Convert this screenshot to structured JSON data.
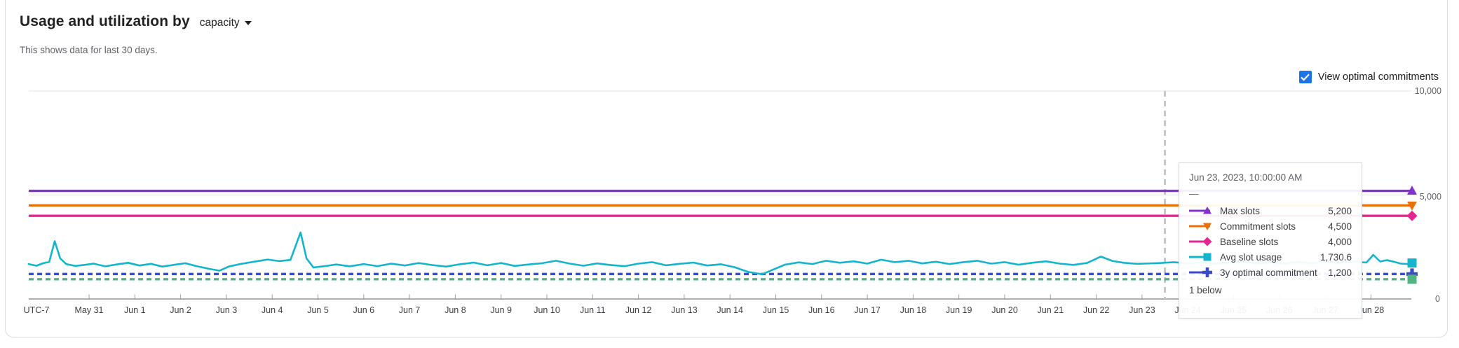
{
  "header": {
    "title": "Usage and utilization by",
    "dimension": "capacity",
    "subtitle": "This shows data for last 30 days."
  },
  "controls": {
    "view_optimal_label": "View optimal commitments",
    "checkbox_checked": true,
    "checkbox_color": "#1a73e8"
  },
  "tooltip": {
    "title": "Jun 23, 2023, 10:00:00 AM",
    "dash": "—",
    "rows": [
      {
        "label": "Max slots",
        "value": "5,200",
        "color": "#8430ce",
        "marker": "triangle-up"
      },
      {
        "label": "Commitment slots",
        "value": "4,500",
        "color": "#e8710a",
        "marker": "triangle-down"
      },
      {
        "label": "Baseline slots",
        "value": "4,000",
        "color": "#e52592",
        "marker": "diamond"
      },
      {
        "label": "Avg slot usage",
        "value": "1,730.6",
        "color": "#12b5cb",
        "marker": "square"
      },
      {
        "label": "3y optimal commitment",
        "value": "1,200",
        "color": "#3b4bc8",
        "marker": "plus"
      }
    ],
    "footer": "1 below"
  },
  "chart_data": {
    "type": "line",
    "title": "Usage and utilization by capacity",
    "x_axis": {
      "timezone_label": "UTC-7",
      "tick_labels": [
        "May 31",
        "Jun 1",
        "Jun 2",
        "Jun 3",
        "Jun 4",
        "Jun 5",
        "Jun 6",
        "Jun 7",
        "Jun 8",
        "Jun 9",
        "Jun 10",
        "Jun 11",
        "Jun 12",
        "Jun 13",
        "Jun 14",
        "Jun 15",
        "Jun 16",
        "Jun 17",
        "Jun 18",
        "Jun 19",
        "Jun 20",
        "Jun 21",
        "Jun 22",
        "Jun 23",
        "Jun 24",
        "Jun 25",
        "Jun 26",
        "Jun 27",
        "Jun 28"
      ],
      "ticks_faded_under_tooltip": [
        "Jun 24",
        "Jun 25",
        "Jun 26",
        "Jun 27"
      ]
    },
    "y_axis": {
      "range": [
        0,
        10000
      ],
      "ticks": [
        0,
        5000,
        10000
      ],
      "tick_labels": [
        "0",
        "5,000",
        "10,000"
      ],
      "position": "right",
      "grid": true
    },
    "crosshair": {
      "label": "Jun 23, 2023, 10:00:00 AM",
      "day_offset": 23.5
    },
    "legend_position": "tooltip-only",
    "series": [
      {
        "name": "Max slots",
        "color": "#8430ce",
        "style": "solid",
        "marker": "triangle-up",
        "constant_value": 5200
      },
      {
        "name": "Commitment slots",
        "color": "#e8710a",
        "style": "solid",
        "marker": "triangle-down",
        "constant_value": 4500
      },
      {
        "name": "Baseline slots",
        "color": "#e52592",
        "style": "solid",
        "marker": "diamond",
        "constant_value": 4000
      },
      {
        "name": "3y optimal commitment",
        "color": "#3b4bc8",
        "style": "dashed",
        "marker": "plus",
        "constant_value": 1200
      },
      {
        "name": "",
        "label_visible": false,
        "note": "hidden series, tooltip shows '1 below'",
        "color": "#50b483",
        "style": "dashed",
        "marker": "square",
        "constant_value": 950
      },
      {
        "name": "Avg slot usage",
        "color": "#12b5cb",
        "style": "solid",
        "marker": "square",
        "value_at_cursor": 1730.6,
        "points_days_vs_slots": [
          [
            -1.32,
            1680
          ],
          [
            -1.15,
            1600
          ],
          [
            -1.0,
            1720
          ],
          [
            -0.87,
            1780
          ],
          [
            -0.75,
            2780
          ],
          [
            -0.63,
            1950
          ],
          [
            -0.5,
            1680
          ],
          [
            -0.3,
            1590
          ],
          [
            -0.1,
            1640
          ],
          [
            0.1,
            1700
          ],
          [
            0.35,
            1570
          ],
          [
            0.6,
            1660
          ],
          [
            0.85,
            1740
          ],
          [
            1.1,
            1610
          ],
          [
            1.35,
            1690
          ],
          [
            1.6,
            1560
          ],
          [
            1.85,
            1640
          ],
          [
            2.1,
            1720
          ],
          [
            2.35,
            1580
          ],
          [
            2.6,
            1460
          ],
          [
            2.85,
            1360
          ],
          [
            3.05,
            1560
          ],
          [
            3.3,
            1680
          ],
          [
            3.6,
            1790
          ],
          [
            3.9,
            1900
          ],
          [
            4.15,
            1820
          ],
          [
            4.4,
            1880
          ],
          [
            4.62,
            3200
          ],
          [
            4.75,
            1950
          ],
          [
            4.9,
            1520
          ],
          [
            5.15,
            1580
          ],
          [
            5.4,
            1660
          ],
          [
            5.7,
            1570
          ],
          [
            6.0,
            1680
          ],
          [
            6.3,
            1580
          ],
          [
            6.6,
            1700
          ],
          [
            6.9,
            1610
          ],
          [
            7.2,
            1730
          ],
          [
            7.5,
            1630
          ],
          [
            7.8,
            1560
          ],
          [
            8.1,
            1670
          ],
          [
            8.4,
            1750
          ],
          [
            8.7,
            1620
          ],
          [
            9.0,
            1730
          ],
          [
            9.3,
            1590
          ],
          [
            9.6,
            1660
          ],
          [
            9.9,
            1720
          ],
          [
            10.2,
            1840
          ],
          [
            10.5,
            1700
          ],
          [
            10.8,
            1600
          ],
          [
            11.1,
            1710
          ],
          [
            11.4,
            1630
          ],
          [
            11.7,
            1580
          ],
          [
            12.0,
            1700
          ],
          [
            12.3,
            1770
          ],
          [
            12.6,
            1620
          ],
          [
            12.9,
            1690
          ],
          [
            13.2,
            1750
          ],
          [
            13.5,
            1610
          ],
          [
            13.8,
            1670
          ],
          [
            14.1,
            1530
          ],
          [
            14.4,
            1300
          ],
          [
            14.7,
            1190
          ],
          [
            14.95,
            1420
          ],
          [
            15.2,
            1650
          ],
          [
            15.5,
            1760
          ],
          [
            15.8,
            1680
          ],
          [
            16.1,
            1840
          ],
          [
            16.4,
            1740
          ],
          [
            16.7,
            1810
          ],
          [
            17.0,
            1700
          ],
          [
            17.3,
            1890
          ],
          [
            17.6,
            1770
          ],
          [
            17.9,
            1840
          ],
          [
            18.2,
            1710
          ],
          [
            18.5,
            1790
          ],
          [
            18.8,
            1680
          ],
          [
            19.1,
            1770
          ],
          [
            19.4,
            1840
          ],
          [
            19.7,
            1700
          ],
          [
            20.0,
            1770
          ],
          [
            20.3,
            1650
          ],
          [
            20.6,
            1740
          ],
          [
            20.9,
            1810
          ],
          [
            21.2,
            1700
          ],
          [
            21.5,
            1640
          ],
          [
            21.8,
            1730
          ],
          [
            22.1,
            2040
          ],
          [
            22.35,
            1830
          ],
          [
            22.6,
            1740
          ],
          [
            22.9,
            1690
          ],
          [
            23.15,
            1710
          ],
          [
            23.42,
            1730.6
          ],
          [
            23.7,
            1770
          ],
          [
            24.0,
            1700
          ],
          [
            24.3,
            1760
          ],
          [
            24.6,
            1680
          ],
          [
            24.9,
            1740
          ],
          [
            25.2,
            1800
          ],
          [
            25.5,
            1700
          ],
          [
            25.8,
            1760
          ],
          [
            26.1,
            1690
          ],
          [
            26.4,
            1780
          ],
          [
            26.7,
            1720
          ],
          [
            27.0,
            1800
          ],
          [
            27.3,
            1730
          ],
          [
            27.6,
            1800
          ],
          [
            27.9,
            1750
          ],
          [
            28.05,
            2120
          ],
          [
            28.2,
            1800
          ],
          [
            28.35,
            1870
          ],
          [
            28.5,
            1790
          ],
          [
            28.65,
            1700
          ],
          [
            28.8,
            1680
          ],
          [
            28.92,
            1730
          ]
        ]
      }
    ]
  },
  "colors": {
    "grid": "#ececec",
    "axis": "#7d7d7d",
    "tick": "#9aa0a6",
    "x_label": "#3c4043",
    "y_label": "#5f6368",
    "crosshair": "#c6c6c6"
  }
}
